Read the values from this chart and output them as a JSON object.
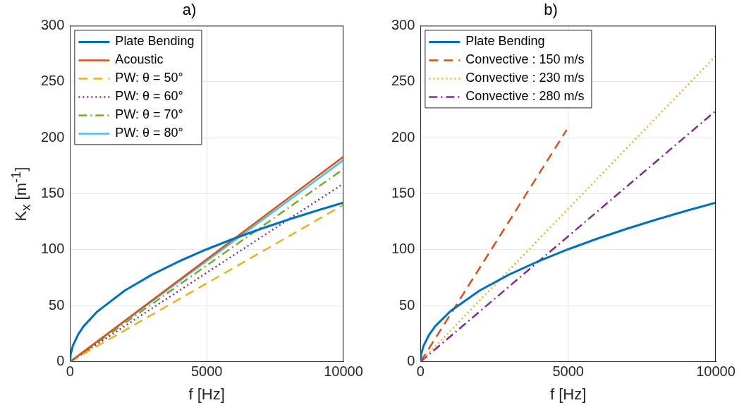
{
  "chart_data": [
    {
      "type": "line",
      "title": "a)",
      "xlabel": "f [Hz]",
      "ylabel": "K$_{x}$ [m$^{-1}$]",
      "xlim": [
        0,
        10000
      ],
      "xticks": [
        0,
        5000,
        10000
      ],
      "ylim": [
        0,
        300
      ],
      "yticks": [
        0,
        50,
        100,
        150,
        200,
        250,
        300
      ],
      "grid": true,
      "legend": "top left",
      "marker": "none",
      "series": [
        {
          "name": "Plate Bending",
          "color": "#0072bd",
          "line_style": "solid",
          "x": [
            0,
            20,
            100,
            300,
            500,
            1000,
            2000,
            3000,
            4000,
            5000,
            6000,
            7000,
            8000,
            9000,
            10000
          ],
          "values": [
            0,
            6.4,
            14.2,
            24.6,
            31.8,
            44.9,
            63.5,
            77.8,
            89.8,
            100.4,
            110,
            118.8,
            127,
            134.7,
            142
          ]
        },
        {
          "name": "Acoustic",
          "color": "#d95319",
          "line_style": "solid",
          "x": [
            0,
            10000
          ],
          "values": [
            0,
            183
          ]
        },
        {
          "name": "PW: θ = 50°",
          "color": "#edb120",
          "line_style": "dashed",
          "x": [
            0,
            10000
          ],
          "values": [
            0,
            140
          ]
        },
        {
          "name": "PW: θ = 60°",
          "color": "#7e2f8e",
          "line_style": "dotted",
          "x": [
            0,
            10000
          ],
          "values": [
            0,
            159
          ]
        },
        {
          "name": "PW: θ = 70°",
          "color": "#77ac30",
          "line_style": "dashdot",
          "x": [
            0,
            10000
          ],
          "values": [
            0,
            172
          ]
        },
        {
          "name": "PW: θ = 80°",
          "color": "#4dbeee",
          "line_style": "solid",
          "x": [
            0,
            10000
          ],
          "values": [
            0,
            180
          ]
        }
      ]
    },
    {
      "type": "line",
      "title": "b)",
      "xlabel": "f [Hz]",
      "xlim": [
        0,
        10000
      ],
      "xticks": [
        0,
        5000,
        10000
      ],
      "ylim": [
        0,
        300
      ],
      "yticks": [
        0,
        50,
        100,
        150,
        200,
        250,
        300
      ],
      "grid": true,
      "legend": "top left",
      "marker": "none",
      "series": [
        {
          "name": "Plate Bending",
          "color": "#0072bd",
          "line_style": "solid",
          "x": [
            0,
            20,
            100,
            300,
            500,
            1000,
            2000,
            3000,
            4000,
            5000,
            6000,
            7000,
            8000,
            9000,
            10000
          ],
          "values": [
            0,
            6.4,
            14.2,
            24.6,
            31.8,
            44.9,
            63.5,
            77.8,
            89.8,
            100.4,
            110,
            118.8,
            127,
            134.7,
            142
          ]
        },
        {
          "name": "Convective : 150 m/s",
          "color": "#d95319",
          "line_style": "dashed",
          "x": [
            0,
            4950
          ],
          "values": [
            0,
            207
          ]
        },
        {
          "name": "Convective : 230 m/s",
          "color": "#edb120",
          "line_style": "dotted",
          "x": [
            0,
            10000
          ],
          "values": [
            0,
            273
          ]
        },
        {
          "name": "Convective : 280 m/s",
          "color": "#7e2f8e",
          "line_style": "dashdot",
          "x": [
            0,
            10000
          ],
          "values": [
            0,
            224
          ]
        }
      ]
    }
  ]
}
